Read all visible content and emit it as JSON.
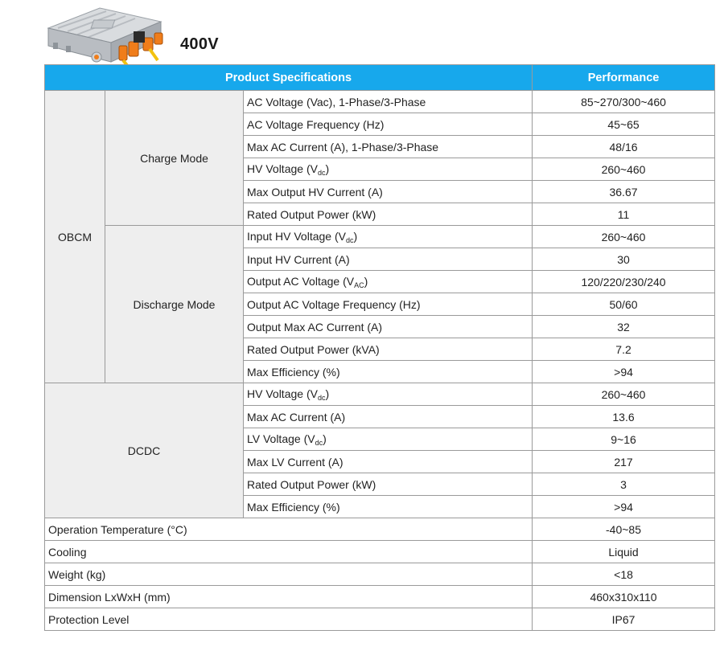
{
  "title": "400V",
  "header": {
    "spec_label": "Product Specifications",
    "perf_label": "Performance"
  },
  "obcm": {
    "label": "OBCM",
    "charge": {
      "label": "Charge Mode",
      "rows": [
        {
          "param": "AC Voltage (Vac), 1-Phase/3-Phase",
          "value": "85~270/300~460"
        },
        {
          "param": "AC Voltage Frequency (Hz)",
          "value": "45~65"
        },
        {
          "param": "Max AC Current (A), 1-Phase/3-Phase",
          "value": "48/16"
        },
        {
          "param_main": "HV Voltage (V",
          "param_sub": "dc",
          "param_end": ")",
          "value": "260~460"
        },
        {
          "param": "Max Output HV Current (A)",
          "value": "36.67"
        },
        {
          "param": "Rated Output Power (kW)",
          "value": "11"
        }
      ]
    },
    "discharge": {
      "label": "Discharge Mode",
      "rows": [
        {
          "param_main": "Input HV Voltage (V",
          "param_sub": "dc",
          "param_end": ")",
          "value": "260~460"
        },
        {
          "param": "Input HV Current (A)",
          "value": "30"
        },
        {
          "param_main": "Output AC Voltage (V",
          "param_sub": "AC",
          "param_end": ")",
          "value": "120/220/230/240"
        },
        {
          "param": "Output AC Voltage Frequency (Hz)",
          "value": "50/60"
        },
        {
          "param": "Output Max AC Current (A)",
          "value": "32"
        },
        {
          "param": "Rated Output Power (kVA)",
          "value": "7.2"
        },
        {
          "param": "Max Efficiency (%)",
          "value": ">94"
        }
      ]
    }
  },
  "dcdc": {
    "label": "DCDC",
    "rows": [
      {
        "param_main": "HV Voltage (V",
        "param_sub": "dc",
        "param_end": ")",
        "value": "260~460"
      },
      {
        "param": "Max AC Current (A)",
        "value": "13.6"
      },
      {
        "param_main": "LV Voltage (V",
        "param_sub": "dc",
        "param_end": ")",
        "value": "9~16"
      },
      {
        "param": "Max LV Current (A)",
        "value": "217"
      },
      {
        "param": "Rated Output Power (kW)",
        "value": "3"
      },
      {
        "param": "Max Efficiency (%)",
        "value": ">94"
      }
    ]
  },
  "general": [
    {
      "param": "Operation Temperature (°C)",
      "value": "-40~85"
    },
    {
      "param": "Cooling",
      "value": "Liquid"
    },
    {
      "param": "Weight (kg)",
      "value": "<18"
    },
    {
      "param": "Dimension LxWxH (mm)",
      "value": "460x310x110"
    },
    {
      "param": "Protection Level",
      "value": "IP67"
    }
  ]
}
